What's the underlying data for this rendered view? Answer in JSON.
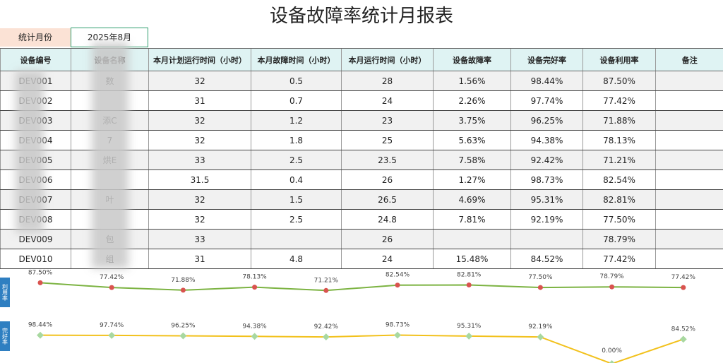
{
  "header": {
    "title": "设备故障率统计月报表",
    "period_label": "统计月份",
    "period_value": "2025年8月"
  },
  "table": {
    "headers": [
      "设备编号",
      "设备名称",
      "本月计划运行时间（小时）",
      "本月故障时间（小时）",
      "本月运行时间（小时）",
      "设备故障率",
      "设备完好率",
      "设备利用率",
      "备注"
    ],
    "rows": [
      [
        "DEV001",
        "数",
        "32",
        "0.5",
        "28",
        "1.56%",
        "98.44%",
        "87.50%",
        null
      ],
      [
        "DEV002",
        null,
        "31",
        "0.7",
        "24",
        "2.26%",
        "97.74%",
        "77.42%",
        null
      ],
      [
        "DEV003",
        "添C",
        "32",
        "1.2",
        "23",
        "3.75%",
        "96.25%",
        "71.88%",
        null
      ],
      [
        "DEV004",
        "7",
        "32",
        "1.8",
        "25",
        "5.63%",
        "94.38%",
        "78.13%",
        null
      ],
      [
        "DEV005",
        "烘E",
        "33",
        "2.5",
        "23.5",
        "7.58%",
        "92.42%",
        "71.21%",
        null
      ],
      [
        "DEV006",
        null,
        "31.5",
        "0.4",
        "26",
        "1.27%",
        "98.73%",
        "82.54%",
        null
      ],
      [
        "DEV007",
        "叶",
        "32",
        "1.5",
        "26.5",
        "4.69%",
        "95.31%",
        "82.81%",
        null
      ],
      [
        "DEV008",
        null,
        "32",
        "2.5",
        "24.8",
        "7.81%",
        "92.19%",
        "77.50%",
        null
      ],
      [
        "DEV009",
        "包",
        "33",
        null,
        "26",
        null,
        null,
        "78.79%",
        null
      ],
      [
        "DEV010",
        "组",
        "31",
        "4.8",
        "24",
        "15.48%",
        "84.52%",
        "77.42%",
        null
      ]
    ]
  },
  "sparklines": [
    {
      "label": "利用率",
      "line_color": "#7cb342",
      "marker_color": "#d9534f",
      "ylim": [
        0,
        100
      ],
      "values": [
        87.5,
        77.42,
        71.88,
        78.13,
        71.21,
        82.54,
        82.81,
        77.5,
        78.79,
        77.42
      ],
      "value_labels": [
        "87.50%",
        "77.42%",
        "71.88%",
        "78.13%",
        "71.21%",
        "82.54%",
        "82.81%",
        "77.50%",
        "78.79%",
        "77.42%"
      ]
    },
    {
      "label": "完好率",
      "line_color": "#f2c11c",
      "marker_color": "#a8d8a0",
      "ylim": [
        0,
        100
      ],
      "values": [
        98.44,
        97.74,
        96.25,
        94.38,
        92.42,
        98.73,
        95.31,
        92.19,
        0,
        84.52
      ],
      "value_labels": [
        "98.44%",
        "97.74%",
        "96.25%",
        "94.38%",
        "92.42%",
        "98.73%",
        "95.31%",
        "92.19%",
        "0.00%",
        "84.52%"
      ]
    }
  ]
}
